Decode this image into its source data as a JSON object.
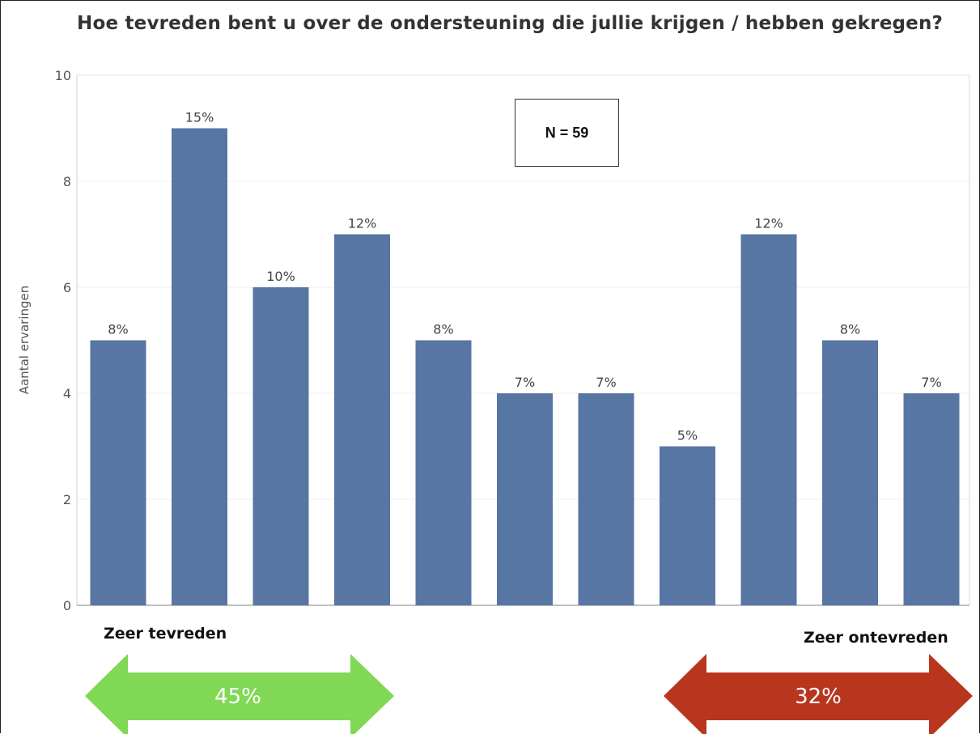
{
  "chart_data": {
    "type": "bar",
    "title": "Hoe tevreden bent u over de ondersteuning die jullie krijgen / hebben gekregen?",
    "ylabel": "Aantal ervaringen",
    "xlabel": "",
    "ylim": [
      0,
      10
    ],
    "yticks": [
      "0",
      "2",
      "4",
      "6",
      "8",
      "10"
    ],
    "categories": [],
    "values": [
      5,
      9,
      6,
      7,
      5,
      4,
      4,
      3,
      7,
      5,
      4
    ],
    "labels": [
      "8%",
      "15%",
      "10%",
      "12%",
      "8%",
      "7%",
      "7%",
      "5%",
      "12%",
      "8%",
      "7%"
    ],
    "bar_color": "#5876a3",
    "grid": true
  },
  "annotation": {
    "n_text": "N = 59"
  },
  "left_label": "Zeer tevreden",
  "right_label": "Zeer ontevreden",
  "left_arrow": {
    "text": "45%",
    "color": "#80d854"
  },
  "right_arrow": {
    "text": "32%",
    "color": "#b8361e"
  }
}
